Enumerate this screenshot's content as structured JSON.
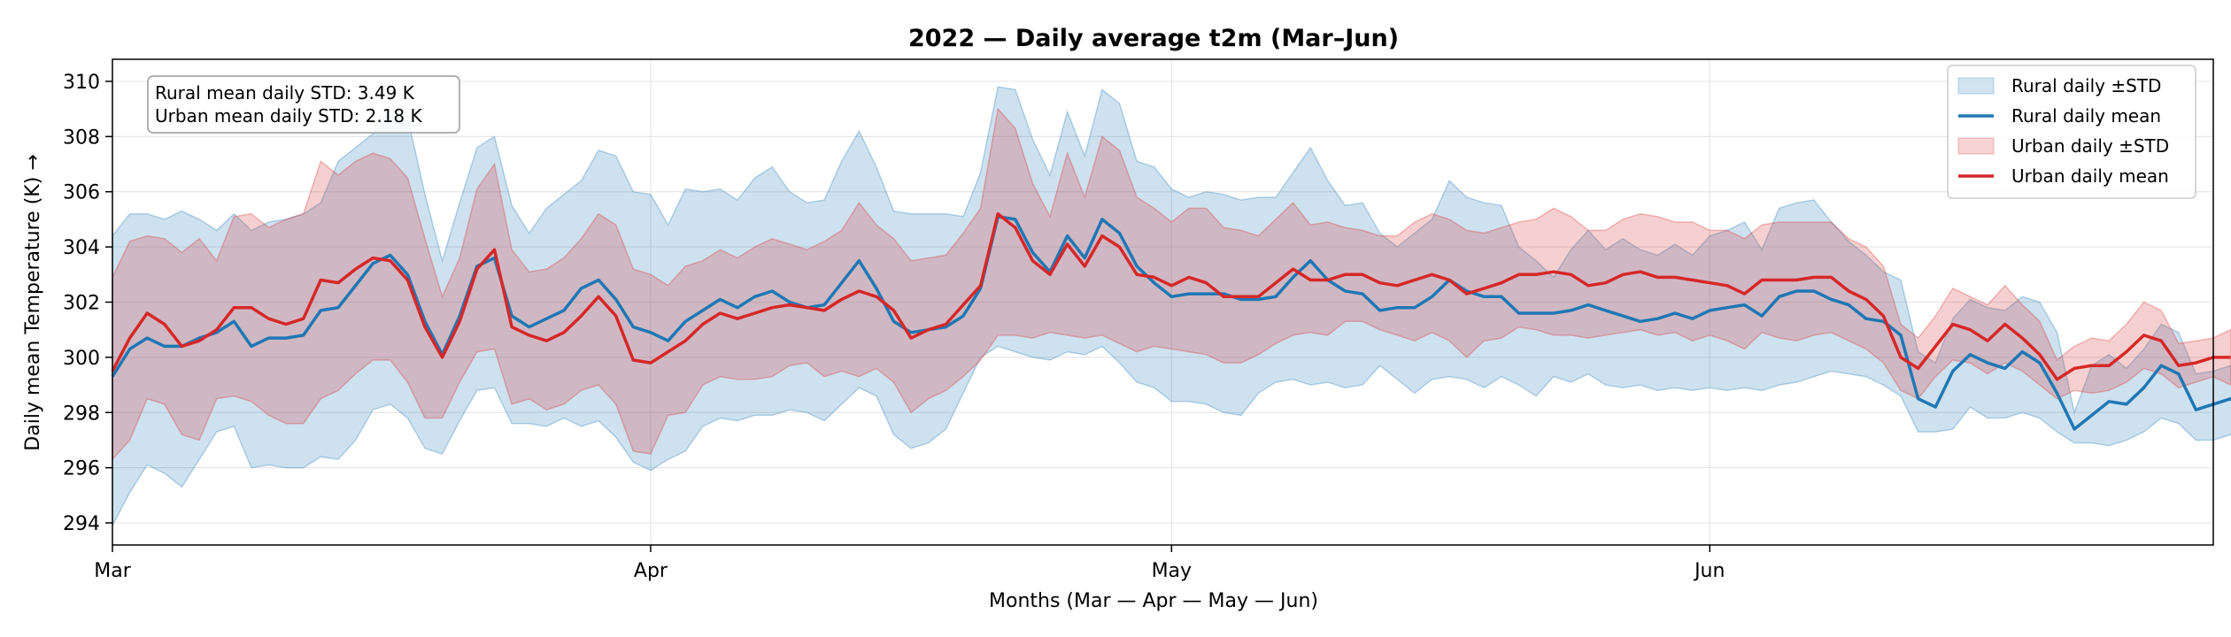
{
  "chart_data": {
    "type": "area",
    "title": "2022 — Daily average t2m (Mar–Jun)",
    "xlabel": "Months (Mar — Apr — May — Jun)",
    "ylabel": "Daily mean Temperature (K) →",
    "x_ticks": [
      "Mar",
      "Apr",
      "May",
      "Jun"
    ],
    "x_tick_days": [
      0,
      31,
      61,
      92
    ],
    "xlim": [
      0,
      121
    ],
    "ylim": [
      293.2,
      310.8
    ],
    "y_ticks": [
      294,
      296,
      298,
      300,
      302,
      304,
      306,
      308,
      310
    ],
    "grid": true,
    "legend_position": "top-right",
    "annotation": [
      "Rural mean daily STD: 3.49 K",
      "Urban mean daily STD: 2.18 K"
    ],
    "colors": {
      "rural_line": "#1f77b4",
      "rural_band": "#1f77b4",
      "urban_line": "#d62728",
      "urban_band": "#d62728"
    },
    "series": [
      {
        "name": "Rural daily mean",
        "band_label": "Rural daily ±STD",
        "mean": [
          299.3,
          300.3,
          300.7,
          300.4,
          300.4,
          300.7,
          300.9,
          301.3,
          300.4,
          300.7,
          300.7,
          300.8,
          301.7,
          301.8,
          302.6,
          303.4,
          303.7,
          303.0,
          301.3,
          300.1,
          301.5,
          303.3,
          303.6,
          301.5,
          301.1,
          301.4,
          301.7,
          302.5,
          302.8,
          302.1,
          301.1,
          300.9,
          300.6,
          301.3,
          301.7,
          302.1,
          301.8,
          302.2,
          302.4,
          302.0,
          301.8,
          301.9,
          302.7,
          303.5,
          302.5,
          301.3,
          300.9,
          301.0,
          301.1,
          301.5,
          302.5,
          305.1,
          305.0,
          303.8,
          303.1,
          304.4,
          303.6,
          305.0,
          304.5,
          303.3,
          302.7,
          302.2,
          302.3,
          302.3,
          302.3,
          302.1,
          302.1,
          302.2,
          302.9,
          303.5,
          302.8,
          302.4,
          302.3,
          301.7,
          301.8,
          301.8,
          302.2,
          302.8,
          302.4,
          302.2,
          302.2,
          301.6,
          301.6,
          301.6,
          301.7,
          301.9,
          301.7,
          301.5,
          301.3,
          301.4,
          301.6,
          301.4,
          301.7,
          301.8,
          301.9,
          301.5,
          302.2,
          302.4,
          302.4,
          302.1,
          301.9,
          301.4,
          301.3,
          300.8,
          298.5,
          298.2,
          299.5,
          300.1,
          299.8,
          299.6,
          300.2,
          299.8,
          298.7,
          297.4,
          297.9,
          298.4,
          298.3,
          298.9,
          299.7,
          299.4,
          298.1,
          298.3,
          298.5,
          298.1
        ],
        "lower": [
          293.9,
          295.1,
          296.1,
          295.8,
          295.3,
          296.3,
          297.3,
          297.5,
          296.0,
          296.1,
          296.0,
          296.0,
          296.4,
          296.3,
          297.0,
          298.1,
          298.3,
          297.8,
          296.7,
          296.5,
          297.7,
          298.8,
          298.9,
          297.6,
          297.6,
          297.5,
          297.8,
          297.5,
          297.7,
          297.1,
          296.2,
          295.9,
          296.3,
          296.6,
          297.5,
          297.8,
          297.7,
          297.9,
          297.9,
          298.1,
          298.0,
          297.7,
          298.3,
          298.9,
          298.6,
          297.2,
          296.7,
          296.9,
          297.4,
          298.7,
          300.0,
          300.4,
          300.2,
          300.0,
          299.9,
          300.2,
          300.1,
          300.4,
          299.8,
          299.1,
          298.9,
          298.4,
          298.4,
          298.3,
          298.0,
          297.9,
          298.7,
          299.1,
          299.2,
          299.0,
          299.1,
          298.9,
          299.0,
          299.7,
          299.2,
          298.7,
          299.2,
          299.3,
          299.2,
          298.9,
          299.3,
          299.0,
          298.6,
          299.3,
          299.1,
          299.4,
          299.0,
          298.9,
          299.0,
          298.8,
          298.9,
          298.8,
          298.9,
          298.8,
          298.9,
          298.8,
          299.0,
          299.1,
          299.3,
          299.5,
          299.4,
          299.3,
          299.0,
          298.6,
          297.3,
          297.3,
          297.4,
          298.2,
          297.8,
          297.8,
          298.0,
          297.8,
          297.3,
          296.9,
          296.9,
          296.8,
          297.0,
          297.3,
          297.8,
          297.6,
          297.0,
          297.0,
          297.2,
          296.9
        ],
        "upper": [
          304.4,
          305.2,
          305.2,
          305.0,
          305.3,
          305.0,
          304.6,
          305.2,
          304.6,
          304.9,
          305.0,
          305.2,
          305.6,
          307.1,
          307.6,
          308.1,
          309.0,
          308.7,
          305.9,
          303.5,
          305.6,
          307.6,
          308.0,
          305.5,
          304.5,
          305.4,
          305.9,
          306.4,
          307.5,
          307.3,
          306.0,
          305.9,
          304.8,
          306.1,
          306.0,
          306.1,
          305.7,
          306.5,
          306.9,
          306.0,
          305.6,
          305.7,
          307.1,
          308.2,
          306.9,
          305.3,
          305.2,
          305.2,
          305.2,
          305.1,
          306.7,
          309.8,
          309.7,
          307.9,
          306.6,
          308.9,
          307.3,
          309.7,
          309.2,
          307.1,
          306.9,
          306.1,
          305.8,
          306.0,
          305.9,
          305.7,
          305.8,
          305.8,
          306.7,
          307.6,
          306.4,
          305.5,
          305.6,
          304.5,
          304.0,
          304.5,
          305.0,
          306.4,
          305.8,
          305.6,
          305.5,
          304.0,
          303.5,
          302.9,
          303.9,
          304.6,
          303.9,
          304.3,
          303.9,
          303.7,
          304.1,
          303.7,
          304.4,
          304.6,
          304.9,
          303.9,
          305.4,
          305.6,
          305.7,
          304.9,
          304.2,
          303.7,
          303.1,
          302.8,
          300.2,
          299.8,
          301.4,
          302.1,
          301.8,
          301.7,
          302.2,
          302.0,
          300.9,
          298.0,
          299.7,
          300.1,
          299.6,
          300.3,
          301.2,
          300.9,
          299.4,
          299.5,
          299.7,
          299.3
        ]
      },
      {
        "name": "Urban daily mean",
        "band_label": "Urban daily ±STD",
        "mean": [
          299.5,
          300.7,
          301.6,
          301.2,
          300.4,
          300.6,
          301.0,
          301.8,
          301.8,
          301.4,
          301.2,
          301.4,
          302.8,
          302.7,
          303.2,
          303.6,
          303.5,
          302.8,
          301.1,
          300.0,
          301.3,
          303.2,
          303.9,
          301.1,
          300.8,
          300.6,
          300.9,
          301.5,
          302.2,
          301.5,
          299.9,
          299.8,
          300.2,
          300.6,
          301.2,
          301.6,
          301.4,
          301.6,
          301.8,
          301.9,
          301.8,
          301.7,
          302.1,
          302.4,
          302.2,
          301.7,
          300.7,
          301.0,
          301.2,
          301.9,
          302.6,
          305.2,
          304.7,
          303.5,
          303.0,
          304.1,
          303.3,
          304.4,
          304.0,
          303.0,
          302.9,
          302.6,
          302.9,
          302.7,
          302.2,
          302.2,
          302.2,
          302.7,
          303.2,
          302.8,
          302.8,
          303.0,
          303.0,
          302.7,
          302.6,
          302.8,
          303.0,
          302.8,
          302.3,
          302.5,
          302.7,
          303.0,
          303.0,
          303.1,
          303.0,
          302.6,
          302.7,
          303.0,
          303.1,
          302.9,
          302.9,
          302.8,
          302.7,
          302.6,
          302.3,
          302.8,
          302.8,
          302.8,
          302.9,
          302.9,
          302.4,
          302.1,
          301.5,
          300.0,
          299.6,
          300.4,
          301.2,
          301.0,
          300.6,
          301.2,
          300.7,
          300.1,
          299.2,
          299.6,
          299.7,
          299.7,
          300.2,
          300.8,
          300.6,
          299.7,
          299.8,
          300.0,
          300.0
        ],
        "lower": [
          296.3,
          297.0,
          298.5,
          298.3,
          297.2,
          297.0,
          298.5,
          298.6,
          298.4,
          297.9,
          297.6,
          297.6,
          298.5,
          298.8,
          299.4,
          299.9,
          299.9,
          299.1,
          297.8,
          297.8,
          299.1,
          300.2,
          300.3,
          298.3,
          298.5,
          298.1,
          298.3,
          298.8,
          299.0,
          298.3,
          296.6,
          296.5,
          297.9,
          298.0,
          299.0,
          299.3,
          299.2,
          299.2,
          299.3,
          299.7,
          299.8,
          299.3,
          299.5,
          299.3,
          299.6,
          299.1,
          298.0,
          298.5,
          298.8,
          299.3,
          299.9,
          300.8,
          300.8,
          300.7,
          300.9,
          300.8,
          300.7,
          300.8,
          300.5,
          300.2,
          300.4,
          300.3,
          300.2,
          300.1,
          299.8,
          299.8,
          300.1,
          300.5,
          300.8,
          300.9,
          300.8,
          301.3,
          301.3,
          301.0,
          300.8,
          300.6,
          300.9,
          300.6,
          300.0,
          300.6,
          300.7,
          301.1,
          301.0,
          300.8,
          300.8,
          300.7,
          300.8,
          300.9,
          301.0,
          300.8,
          300.9,
          300.6,
          300.8,
          300.6,
          300.3,
          300.9,
          300.7,
          300.6,
          300.8,
          300.9,
          300.6,
          300.3,
          299.8,
          298.8,
          298.5,
          299.3,
          299.9,
          299.8,
          299.4,
          299.8,
          299.5,
          299.0,
          298.5,
          298.8,
          298.7,
          298.8,
          299.1,
          299.6,
          299.4,
          298.9,
          299.1,
          299.3,
          299.0
        ],
        "upper": [
          302.9,
          304.2,
          304.4,
          304.3,
          303.8,
          304.3,
          303.5,
          305.1,
          305.2,
          304.7,
          305.0,
          305.2,
          307.1,
          306.6,
          307.1,
          307.4,
          307.2,
          306.5,
          304.3,
          302.2,
          303.6,
          306.1,
          307.0,
          303.9,
          303.1,
          303.2,
          303.6,
          304.3,
          305.2,
          304.8,
          303.2,
          303.0,
          302.6,
          303.3,
          303.5,
          303.9,
          303.6,
          304.0,
          304.3,
          304.1,
          303.9,
          304.2,
          304.6,
          305.6,
          304.8,
          304.3,
          303.5,
          303.6,
          303.7,
          304.5,
          305.4,
          309.0,
          308.3,
          306.3,
          305.1,
          307.4,
          305.8,
          308.0,
          307.5,
          305.8,
          305.4,
          304.9,
          305.4,
          305.4,
          304.7,
          304.6,
          304.4,
          305.0,
          305.6,
          304.8,
          304.9,
          304.7,
          304.6,
          304.4,
          304.4,
          304.9,
          305.2,
          305.0,
          304.6,
          304.5,
          304.7,
          304.9,
          305.0,
          305.4,
          305.1,
          304.6,
          304.6,
          305.0,
          305.2,
          305.1,
          304.9,
          304.9,
          304.6,
          304.6,
          304.3,
          304.8,
          304.9,
          304.9,
          304.9,
          304.9,
          304.3,
          304.0,
          303.3,
          301.2,
          300.7,
          301.5,
          302.5,
          302.2,
          301.9,
          302.6,
          301.9,
          301.3,
          299.9,
          300.4,
          300.7,
          300.6,
          301.2,
          302.0,
          301.7,
          300.5,
          300.6,
          300.7,
          301.0
        ]
      }
    ]
  }
}
